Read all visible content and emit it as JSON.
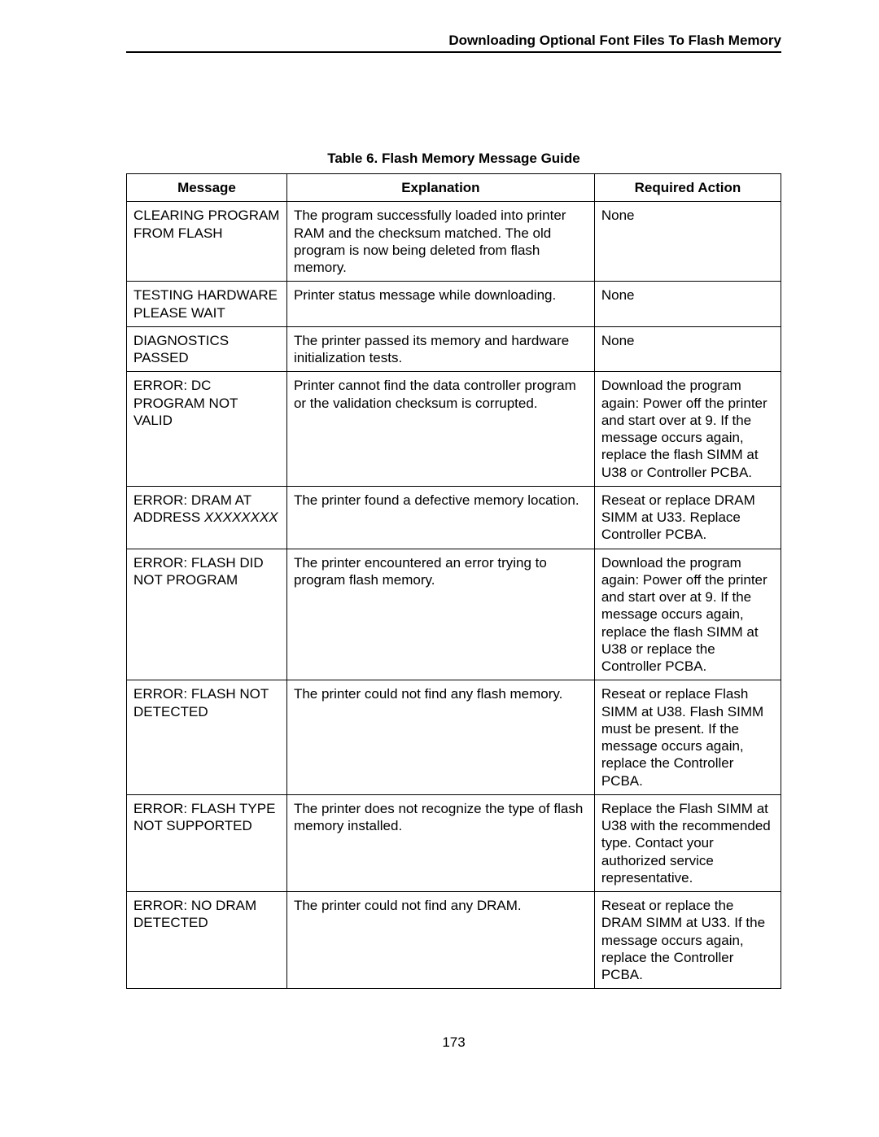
{
  "header": "Downloading Optional Font Files To Flash Memory",
  "caption": "Table 6. Flash Memory Message Guide",
  "columns": [
    "Message",
    "Explanation",
    "Required Action"
  ],
  "rows": [
    {
      "message": "CLEARING PROGRAM FROM FLASH",
      "explanation": "The program successfully loaded into printer RAM and the checksum matched. The old program is now being deleted from flash memory.",
      "action": "None"
    },
    {
      "message": "TESTING HARDWARE PLEASE WAIT",
      "explanation": "Printer status message while downloading.",
      "action": "None"
    },
    {
      "message": "DIAGNOSTICS PASSED",
      "explanation": "The printer passed its memory and hardware initialization tests.",
      "action": "None"
    },
    {
      "message": "ERROR: DC PROGRAM NOT VALID",
      "explanation": "Printer cannot find the data controller program or the validation checksum is corrupted.",
      "action": "Download the program again: Power off the printer and start over at 9. If the message occurs again, replace the flash SIMM at U38 or Controller PCBA."
    },
    {
      "message_prefix": "ERROR: DRAM AT ADDRESS ",
      "message_italic": "XXXXXXXX",
      "explanation": "The printer found a defective memory location.",
      "action": "Reseat or replace DRAM SIMM at U33. Replace Controller PCBA."
    },
    {
      "message": "ERROR: FLASH DID NOT PROGRAM",
      "explanation": "The printer encountered an error trying to program flash memory.",
      "action": "Download the program again: Power off the printer and start over at 9. If the message occurs again, replace the flash SIMM at U38 or replace the Controller PCBA."
    },
    {
      "message": "ERROR: FLASH NOT DETECTED",
      "explanation": "The printer could not find any flash memory.",
      "action": "Reseat or replace Flash SIMM at U38. Flash SIMM must be present. If the message occurs again, replace the Controller PCBA."
    },
    {
      "message": "ERROR: FLASH TYPE NOT SUPPORTED",
      "explanation": "The printer does not recognize the type of flash memory installed.",
      "action": "Replace the Flash SIMM at U38 with the recommended type. Contact your authorized service representative."
    },
    {
      "message": "ERROR: NO DRAM DETECTED",
      "explanation": "The printer could not find any DRAM.",
      "action": "Reseat or replace the DRAM SIMM at U33. If the message occurs again, replace the Controller PCBA."
    }
  ],
  "page_number": "173"
}
